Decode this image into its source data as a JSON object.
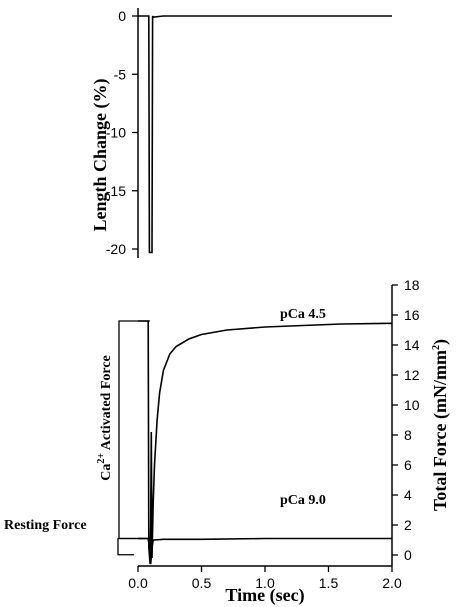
{
  "chart_data": [
    {
      "type": "line",
      "ylabel": "Length Change (%)",
      "ylim": [
        -20,
        0
      ],
      "yticks": [
        "0",
        "-5",
        "-10",
        "-15",
        "-20"
      ],
      "xlim": [
        0.0,
        2.0
      ],
      "series": [
        {
          "x": [
            0.0,
            0.085,
            0.09,
            0.095,
            0.105,
            0.11,
            0.115,
            0.12,
            0.2,
            0.5,
            1.0,
            1.5,
            2.0
          ],
          "y": [
            0,
            0,
            -20.3,
            -20.3,
            -20.3,
            -20.3,
            0,
            -0.1,
            0,
            0,
            0,
            0,
            0
          ]
        }
      ]
    },
    {
      "type": "line",
      "xlabel": "Time (sec)",
      "xlim": [
        0.0,
        2.0
      ],
      "xticks": [
        "0.0",
        "0.5",
        "1.0",
        "1.5",
        "2.0"
      ],
      "ylabel": "Total Force (mN/mm²)",
      "ylim": [
        0,
        18
      ],
      "yticks": [
        "0",
        "2",
        "4",
        "6",
        "8",
        "10",
        "12",
        "14",
        "16",
        "18"
      ],
      "annotations": {
        "series_high": "pCa 4.5",
        "series_low": "pCa 9.0",
        "activated_pre": "Ca",
        "activated_sup": "2+",
        "activated_post": " Activated Force",
        "resting": "Resting Force"
      },
      "series": [
        {
          "name": "pCa 4.5",
          "x": [
            0.0,
            0.08,
            0.085,
            0.095,
            0.1,
            0.105,
            0.11,
            0.12,
            0.13,
            0.15,
            0.17,
            0.2,
            0.25,
            0.3,
            0.4,
            0.5,
            0.7,
            1.0,
            1.3,
            1.6,
            2.0
          ],
          "y": [
            15.6,
            15.6,
            0.5,
            -0.6,
            2.0,
            8.2,
            -0.2,
            3.5,
            6.0,
            9.0,
            10.8,
            12.3,
            13.4,
            13.9,
            14.4,
            14.7,
            15.0,
            15.2,
            15.3,
            15.4,
            15.45
          ]
        },
        {
          "name": "pCa 9.0",
          "x": [
            0.0,
            0.08,
            0.085,
            0.1,
            0.11,
            0.12,
            0.13,
            0.2,
            0.5,
            1.0,
            1.5,
            2.0
          ],
          "y": [
            1.1,
            1.1,
            0.8,
            -0.6,
            0.5,
            1.0,
            1.0,
            1.05,
            1.05,
            1.1,
            1.1,
            1.1
          ]
        }
      ]
    }
  ]
}
